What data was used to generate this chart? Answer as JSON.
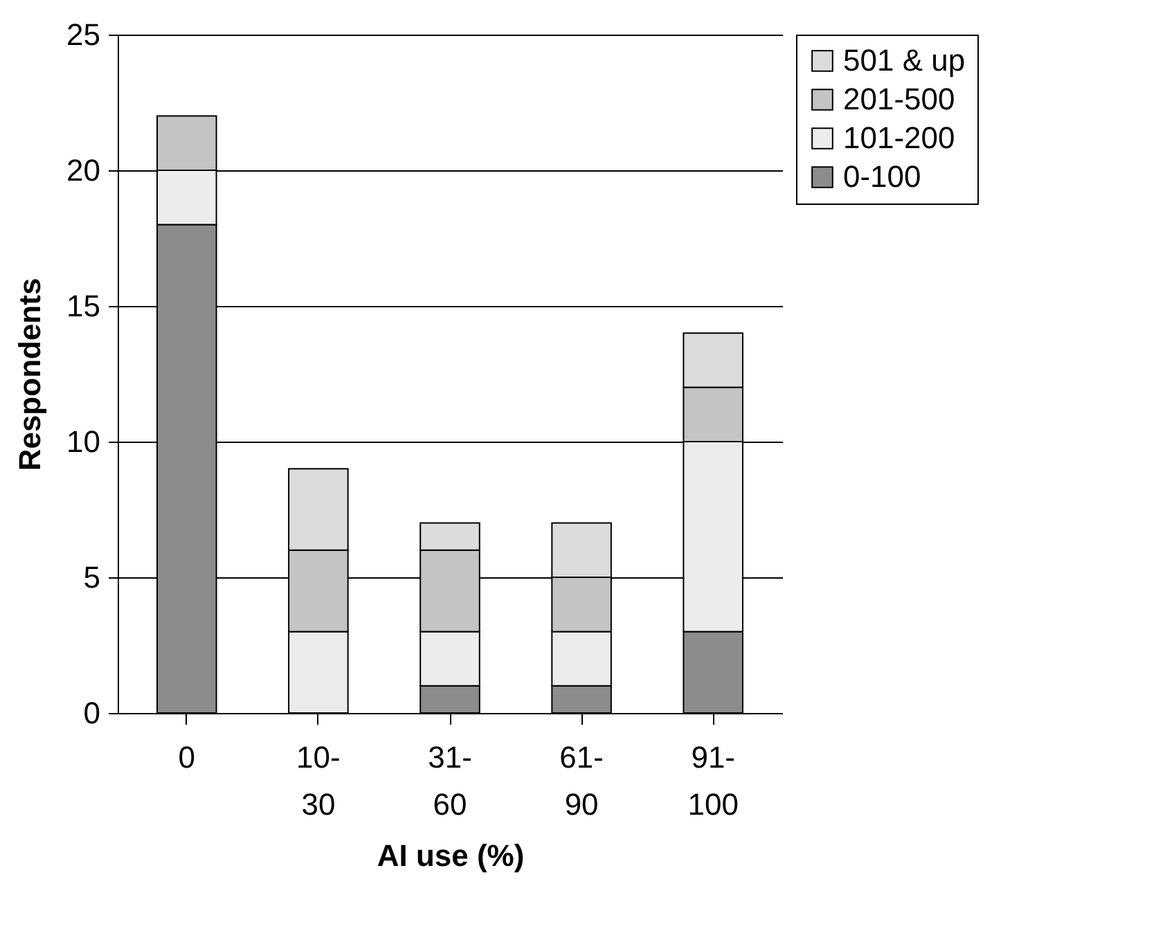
{
  "chart_data": {
    "type": "bar",
    "stacked": true,
    "xlabel": "AI use (%)",
    "ylabel": "Respondents",
    "categories": [
      "0",
      "10-30",
      "31-60",
      "61-90",
      "91-100"
    ],
    "series": [
      {
        "name": "0-100",
        "color": "#8c8c8c",
        "values": [
          18,
          0,
          1,
          1,
          3
        ]
      },
      {
        "name": "101-200",
        "color": "#ececec",
        "values": [
          2,
          3,
          2,
          2,
          7
        ]
      },
      {
        "name": "201-500",
        "color": "#c4c4c4",
        "values": [
          2,
          3,
          3,
          2,
          2
        ]
      },
      {
        "name": "501 & up",
        "color": "#dcdcdc",
        "values": [
          0,
          3,
          1,
          2,
          2
        ]
      }
    ],
    "ylim": [
      0,
      25
    ],
    "yticks": [
      0,
      5,
      10,
      15,
      20,
      25
    ],
    "grid": "y",
    "legend": "right"
  }
}
